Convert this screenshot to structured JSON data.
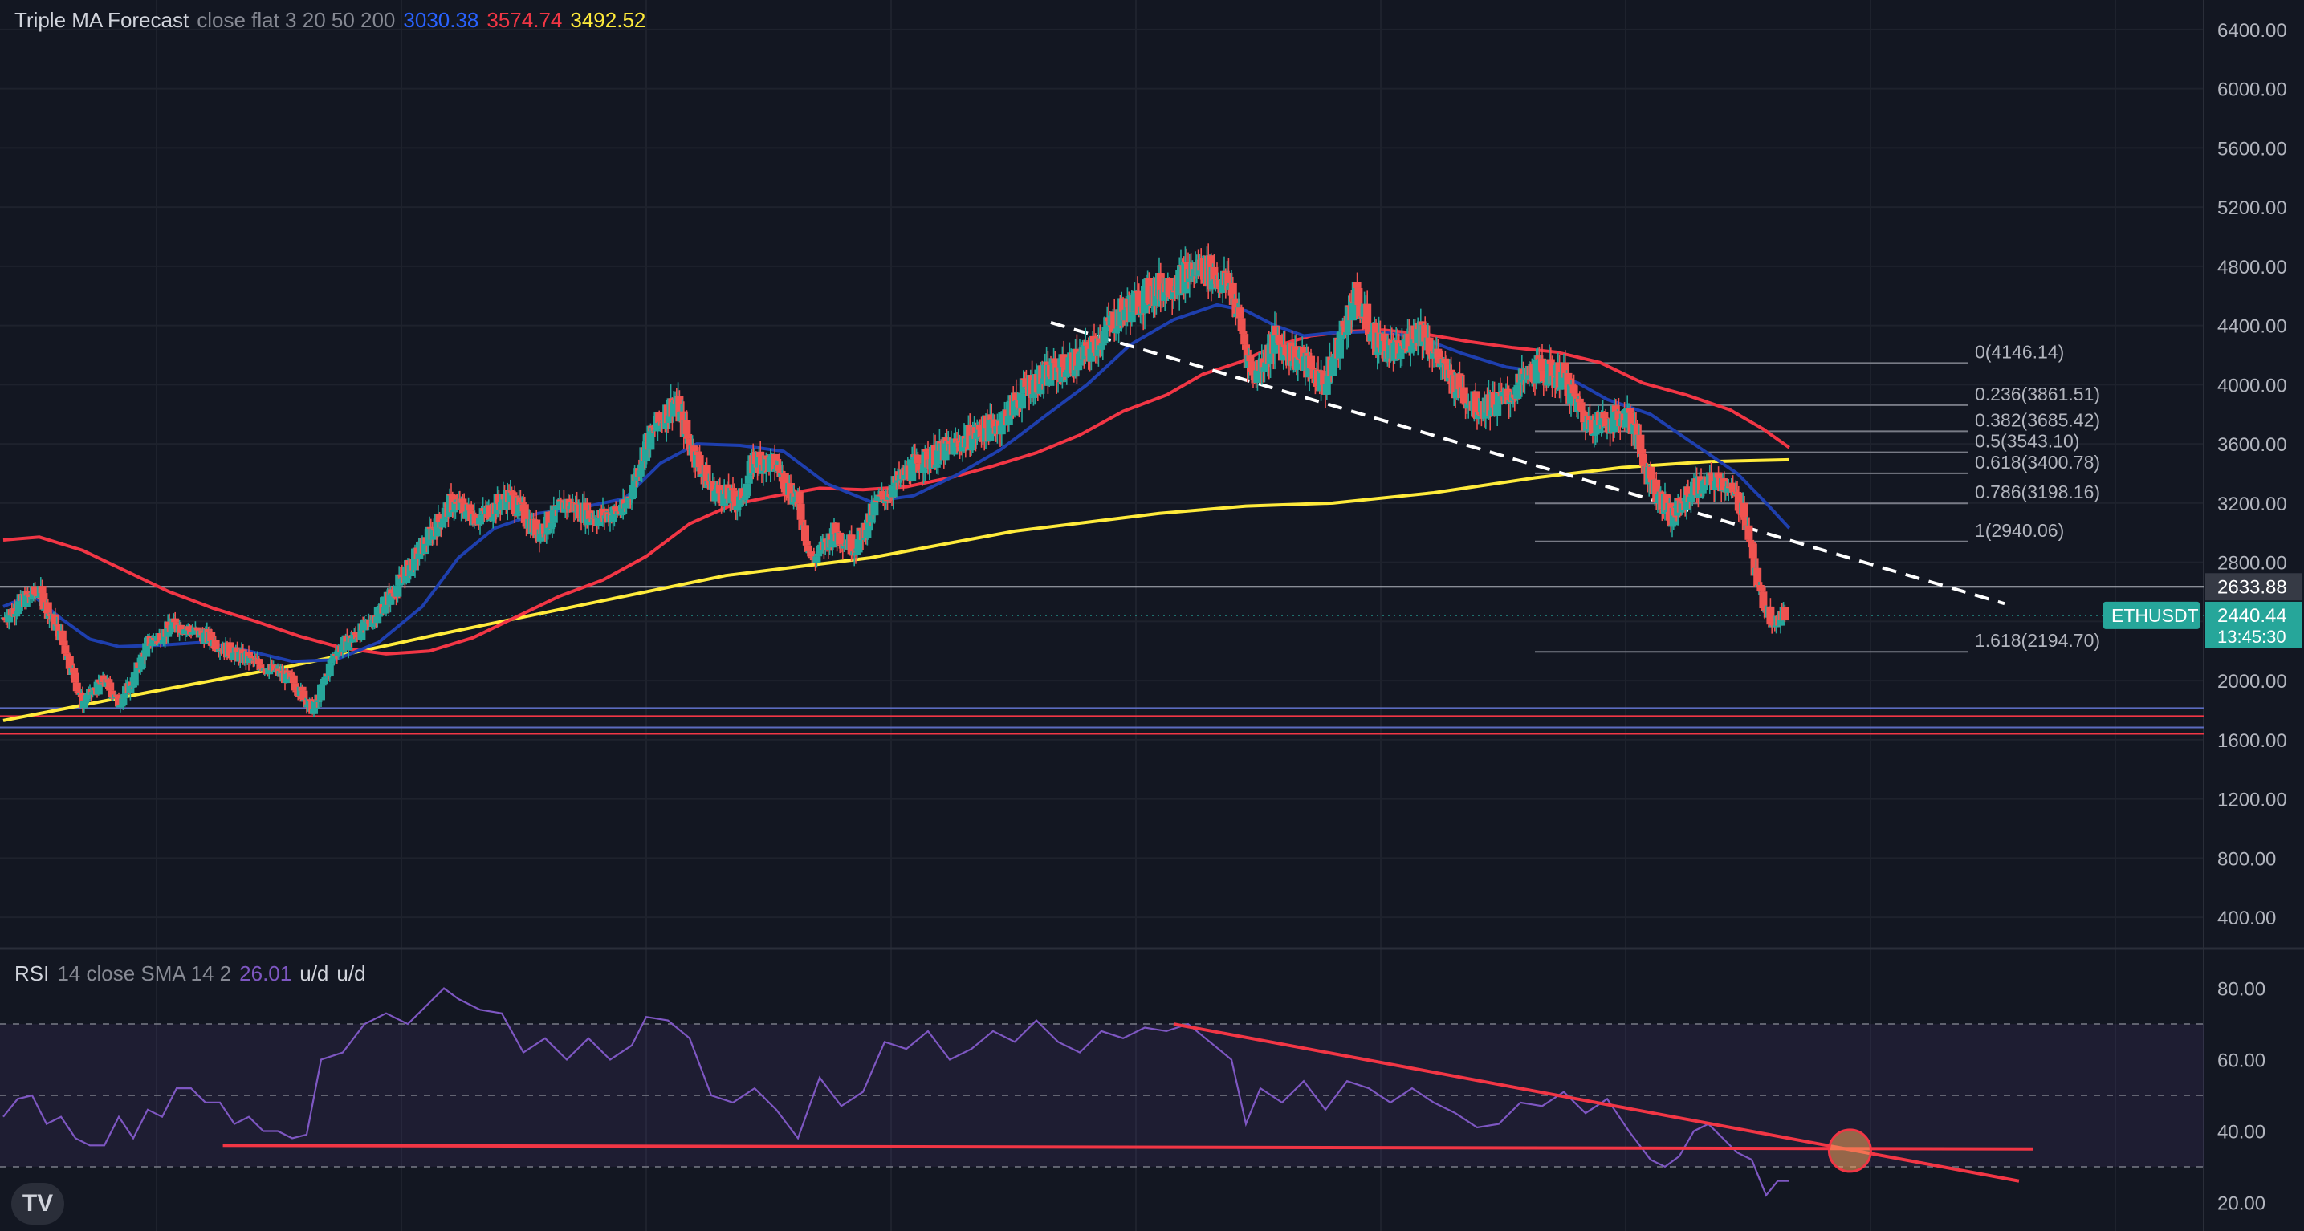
{
  "legend_main": {
    "title": "Triple MA Forecast",
    "params": "close flat 3 20 50 200",
    "v1": "3030.38",
    "v2": "3574.74",
    "v3": "3492.52",
    "c1": "#2962ff",
    "c2": "#f23645",
    "c3": "#ffeb3b"
  },
  "legend_rsi": {
    "title": "RSI",
    "params": "14 close SMA 14 2",
    "value": "26.01",
    "u1": "u/d",
    "u2": "u/d",
    "color": "#7e57c2"
  },
  "logo_text": "TV",
  "colors": {
    "background": "#131722",
    "up": "#26a69a",
    "down": "#ef5350",
    "grid": "#1e222d",
    "axis_text": "#b2b5be"
  },
  "chart_data": [
    {
      "type": "candlestick",
      "symbol": "ETHUSDT",
      "ylim": [
        200,
        6600
      ],
      "yticks": [
        "400.00",
        "800.00",
        "1200.00",
        "1600.00",
        "2000.00",
        "2400.00",
        "2800.00",
        "3200.00",
        "3600.00",
        "4000.00",
        "4400.00",
        "4800.00",
        "5200.00",
        "5600.00",
        "6000.00",
        "6400.00"
      ],
      "price_labels": [
        {
          "text": "2633.88",
          "value": 2633.88,
          "bg": "#363a45",
          "fg": "#ffffff"
        },
        {
          "text": "2440.44",
          "value": 2440.44,
          "bg": "#26a69a",
          "fg": "#ffffff",
          "sub": "13:45:30"
        }
      ],
      "symbol_tag": "ETHUSDT",
      "price_path": [
        [
          0,
          2420
        ],
        [
          15,
          2550
        ],
        [
          25,
          2600
        ],
        [
          40,
          2300
        ],
        [
          55,
          1850
        ],
        [
          70,
          2000
        ],
        [
          80,
          1850
        ],
        [
          90,
          2000
        ],
        [
          100,
          2250
        ],
        [
          120,
          2380
        ],
        [
          140,
          2300
        ],
        [
          160,
          2180
        ],
        [
          180,
          2100
        ],
        [
          200,
          2000
        ],
        [
          215,
          1800
        ],
        [
          230,
          2200
        ],
        [
          250,
          2350
        ],
        [
          270,
          2600
        ],
        [
          290,
          2900
        ],
        [
          310,
          3200
        ],
        [
          330,
          3100
        ],
        [
          350,
          3250
        ],
        [
          370,
          3000
        ],
        [
          390,
          3200
        ],
        [
          410,
          3100
        ],
        [
          430,
          3150
        ],
        [
          445,
          3600
        ],
        [
          465,
          3900
        ],
        [
          475,
          3600
        ],
        [
          490,
          3300
        ],
        [
          510,
          3200
        ],
        [
          520,
          3500
        ],
        [
          535,
          3450
        ],
        [
          550,
          3200
        ],
        [
          560,
          2800
        ],
        [
          575,
          3000
        ],
        [
          590,
          2900
        ],
        [
          605,
          3200
        ],
        [
          630,
          3450
        ],
        [
          660,
          3600
        ],
        [
          690,
          3750
        ],
        [
          710,
          4000
        ],
        [
          730,
          4100
        ],
        [
          750,
          4200
        ],
        [
          770,
          4450
        ],
        [
          790,
          4600
        ],
        [
          810,
          4700
        ],
        [
          830,
          4800
        ],
        [
          850,
          4650
        ],
        [
          865,
          4050
        ],
        [
          880,
          4300
        ],
        [
          900,
          4150
        ],
        [
          915,
          4000
        ],
        [
          935,
          4600
        ],
        [
          950,
          4300
        ],
        [
          965,
          4200
        ],
        [
          980,
          4400
        ],
        [
          1000,
          4050
        ],
        [
          1020,
          3850
        ],
        [
          1040,
          3900
        ],
        [
          1060,
          4100
        ],
        [
          1080,
          4050
        ],
        [
          1095,
          3750
        ],
        [
          1110,
          3750
        ],
        [
          1125,
          3800
        ],
        [
          1140,
          3350
        ],
        [
          1155,
          3100
        ],
        [
          1170,
          3300
        ],
        [
          1190,
          3350
        ],
        [
          1205,
          3150
        ],
        [
          1215,
          2600
        ],
        [
          1225,
          2400
        ],
        [
          1233,
          2440
        ]
      ],
      "ma_fast": [
        [
          0,
          2500
        ],
        [
          20,
          2580
        ],
        [
          40,
          2420
        ],
        [
          60,
          2280
        ],
        [
          80,
          2230
        ],
        [
          110,
          2240
        ],
        [
          140,
          2260
        ],
        [
          170,
          2200
        ],
        [
          200,
          2130
        ],
        [
          230,
          2140
        ],
        [
          260,
          2260
        ],
        [
          290,
          2500
        ],
        [
          315,
          2830
        ],
        [
          340,
          3030
        ],
        [
          370,
          3130
        ],
        [
          400,
          3170
        ],
        [
          430,
          3230
        ],
        [
          455,
          3470
        ],
        [
          480,
          3600
        ],
        [
          510,
          3590
        ],
        [
          540,
          3550
        ],
        [
          570,
          3330
        ],
        [
          600,
          3210
        ],
        [
          630,
          3250
        ],
        [
          660,
          3390
        ],
        [
          690,
          3560
        ],
        [
          720,
          3780
        ],
        [
          750,
          4000
        ],
        [
          780,
          4270
        ],
        [
          810,
          4440
        ],
        [
          840,
          4540
        ],
        [
          860,
          4500
        ],
        [
          880,
          4400
        ],
        [
          900,
          4330
        ],
        [
          920,
          4350
        ],
        [
          950,
          4360
        ],
        [
          980,
          4320
        ],
        [
          1010,
          4210
        ],
        [
          1040,
          4120
        ],
        [
          1070,
          4080
        ],
        [
          1090,
          4010
        ],
        [
          1110,
          3900
        ],
        [
          1140,
          3800
        ],
        [
          1170,
          3600
        ],
        [
          1200,
          3400
        ],
        [
          1220,
          3200
        ],
        [
          1236,
          3030
        ]
      ],
      "ma_mid": [
        [
          0,
          2950
        ],
        [
          25,
          2970
        ],
        [
          55,
          2880
        ],
        [
          85,
          2740
        ],
        [
          115,
          2600
        ],
        [
          145,
          2490
        ],
        [
          175,
          2400
        ],
        [
          205,
          2300
        ],
        [
          235,
          2220
        ],
        [
          265,
          2180
        ],
        [
          295,
          2200
        ],
        [
          325,
          2290
        ],
        [
          355,
          2430
        ],
        [
          385,
          2570
        ],
        [
          415,
          2680
        ],
        [
          445,
          2840
        ],
        [
          475,
          3060
        ],
        [
          505,
          3190
        ],
        [
          535,
          3250
        ],
        [
          565,
          3300
        ],
        [
          595,
          3290
        ],
        [
          625,
          3310
        ],
        [
          655,
          3370
        ],
        [
          685,
          3450
        ],
        [
          715,
          3540
        ],
        [
          745,
          3660
        ],
        [
          775,
          3820
        ],
        [
          805,
          3930
        ],
        [
          830,
          4070
        ],
        [
          855,
          4150
        ],
        [
          880,
          4260
        ],
        [
          905,
          4330
        ],
        [
          930,
          4360
        ],
        [
          955,
          4370
        ],
        [
          985,
          4340
        ],
        [
          1015,
          4290
        ],
        [
          1045,
          4250
        ],
        [
          1075,
          4220
        ],
        [
          1105,
          4150
        ],
        [
          1135,
          4010
        ],
        [
          1165,
          3930
        ],
        [
          1195,
          3830
        ],
        [
          1218,
          3700
        ],
        [
          1236,
          3575
        ]
      ],
      "ma_slow": [
        [
          0,
          1730
        ],
        [
          100,
          1920
        ],
        [
          200,
          2100
        ],
        [
          300,
          2310
        ],
        [
          400,
          2510
        ],
        [
          500,
          2710
        ],
        [
          600,
          2830
        ],
        [
          700,
          3010
        ],
        [
          800,
          3130
        ],
        [
          860,
          3180
        ],
        [
          920,
          3200
        ],
        [
          990,
          3270
        ],
        [
          1060,
          3370
        ],
        [
          1120,
          3440
        ],
        [
          1180,
          3480
        ],
        [
          1236,
          3493
        ]
      ],
      "fib_levels": [
        {
          "label": "0(4146.14)",
          "value": 4146.14
        },
        {
          "label": "0.236(3861.51)",
          "value": 3861.51
        },
        {
          "label": "0.382(3685.42)",
          "value": 3685.42
        },
        {
          "label": "0.5(3543.10)",
          "value": 3543.1
        },
        {
          "label": "0.618(3400.78)",
          "value": 3400.78
        },
        {
          "label": "0.786(3198.16)",
          "value": 3198.16
        },
        {
          "label": "1(2940.06)",
          "value": 2940.06
        },
        {
          "label": "1.618(2194.70)",
          "value": 2194.7
        }
      ],
      "support_band": [
        1640,
        1760
      ],
      "resistance_line": 2633.88,
      "trendline": [
        [
          725,
          4420
        ],
        [
          1385,
          2520
        ]
      ]
    },
    {
      "type": "line",
      "name": "RSI",
      "ylim": [
        12,
        88
      ],
      "yticks": [
        "20.00",
        "40.00",
        "60.00",
        "80.00"
      ],
      "bands": [
        30,
        50,
        70
      ],
      "rsi": [
        [
          0,
          44
        ],
        [
          10,
          49
        ],
        [
          20,
          50
        ],
        [
          30,
          42
        ],
        [
          40,
          44
        ],
        [
          50,
          38
        ],
        [
          60,
          36
        ],
        [
          70,
          36
        ],
        [
          80,
          44
        ],
        [
          90,
          38
        ],
        [
          100,
          46
        ],
        [
          110,
          44
        ],
        [
          120,
          52
        ],
        [
          130,
          52
        ],
        [
          140,
          48
        ],
        [
          150,
          48
        ],
        [
          160,
          42
        ],
        [
          170,
          44
        ],
        [
          180,
          40
        ],
        [
          190,
          40
        ],
        [
          200,
          38
        ],
        [
          210,
          39
        ],
        [
          220,
          60
        ],
        [
          235,
          62
        ],
        [
          250,
          70
        ],
        [
          265,
          73
        ],
        [
          280,
          70
        ],
        [
          295,
          76
        ],
        [
          305,
          80
        ],
        [
          315,
          77
        ],
        [
          330,
          74
        ],
        [
          345,
          73
        ],
        [
          360,
          62
        ],
        [
          375,
          66
        ],
        [
          390,
          60
        ],
        [
          405,
          66
        ],
        [
          420,
          60
        ],
        [
          435,
          64
        ],
        [
          445,
          72
        ],
        [
          460,
          71
        ],
        [
          475,
          66
        ],
        [
          490,
          50
        ],
        [
          505,
          48
        ],
        [
          520,
          52
        ],
        [
          535,
          46
        ],
        [
          550,
          38
        ],
        [
          565,
          55
        ],
        [
          580,
          47
        ],
        [
          595,
          51
        ],
        [
          610,
          65
        ],
        [
          625,
          63
        ],
        [
          640,
          68
        ],
        [
          655,
          60
        ],
        [
          670,
          63
        ],
        [
          685,
          68
        ],
        [
          700,
          65
        ],
        [
          715,
          71
        ],
        [
          730,
          65
        ],
        [
          745,
          62
        ],
        [
          760,
          68
        ],
        [
          775,
          66
        ],
        [
          790,
          69
        ],
        [
          805,
          68
        ],
        [
          820,
          70
        ],
        [
          835,
          65
        ],
        [
          850,
          60
        ],
        [
          860,
          42
        ],
        [
          870,
          52
        ],
        [
          885,
          48
        ],
        [
          900,
          54
        ],
        [
          915,
          46
        ],
        [
          930,
          54
        ],
        [
          945,
          52
        ],
        [
          960,
          48
        ],
        [
          975,
          52
        ],
        [
          990,
          48
        ],
        [
          1005,
          45
        ],
        [
          1020,
          41
        ],
        [
          1035,
          42
        ],
        [
          1050,
          48
        ],
        [
          1065,
          47
        ],
        [
          1080,
          51
        ],
        [
          1095,
          45
        ],
        [
          1110,
          49
        ],
        [
          1125,
          40
        ],
        [
          1140,
          32
        ],
        [
          1150,
          30
        ],
        [
          1160,
          33
        ],
        [
          1170,
          40
        ],
        [
          1180,
          42
        ],
        [
          1190,
          38
        ],
        [
          1200,
          34
        ],
        [
          1210,
          32
        ],
        [
          1220,
          22
        ],
        [
          1228,
          26
        ],
        [
          1236,
          26
        ]
      ],
      "trend_down": [
        [
          810,
          70
        ],
        [
          1395,
          26
        ]
      ],
      "trend_flat": [
        [
          152,
          36
        ],
        [
          1405,
          35
        ]
      ],
      "marker": [
        1278,
        34.5
      ]
    }
  ]
}
